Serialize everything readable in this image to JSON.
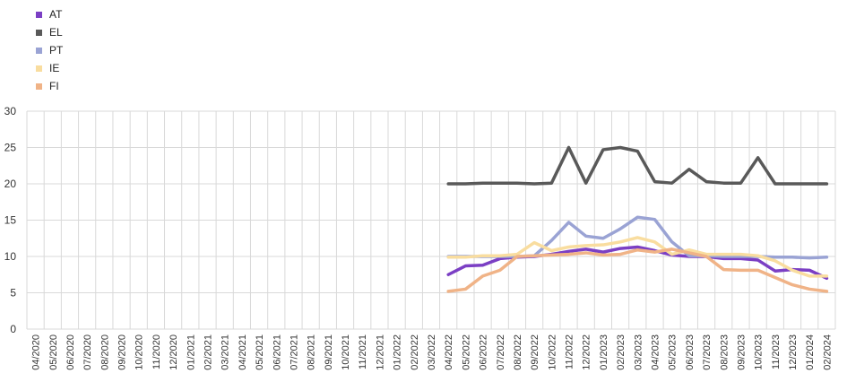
{
  "chart_data": {
    "type": "line",
    "title": "",
    "xlabel": "",
    "ylabel": "",
    "ylim": [
      0,
      30
    ],
    "yticks": [
      0,
      5,
      10,
      15,
      20,
      25,
      30
    ],
    "grid": true,
    "legend_position": "top-left",
    "x": [
      "04/2020",
      "05/2020",
      "06/2020",
      "07/2020",
      "08/2020",
      "09/2020",
      "10/2020",
      "11/2020",
      "12/2020",
      "01/2021",
      "02/2021",
      "03/2021",
      "04/2021",
      "05/2021",
      "06/2021",
      "07/2021",
      "08/2021",
      "09/2021",
      "10/2021",
      "11/2021",
      "12/2021",
      "01/2022",
      "02/2022",
      "03/2022",
      "04/2022",
      "05/2022",
      "06/2022",
      "07/2022",
      "08/2022",
      "09/2022",
      "10/2022",
      "11/2022",
      "12/2022",
      "01/2023",
      "02/2023",
      "03/2023",
      "04/2023",
      "05/2023",
      "06/2023",
      "07/2023",
      "08/2023",
      "09/2023",
      "10/2023",
      "11/2023",
      "12/2023",
      "01/2024",
      "02/2024"
    ],
    "series": [
      {
        "name": "AT",
        "color": "#7b3fc4",
        "values": [
          null,
          null,
          null,
          null,
          null,
          null,
          null,
          null,
          null,
          null,
          null,
          null,
          null,
          null,
          null,
          null,
          null,
          null,
          null,
          null,
          null,
          null,
          null,
          null,
          7.5,
          8.7,
          8.8,
          9.7,
          9.9,
          10.0,
          10.3,
          10.7,
          11.0,
          10.6,
          11.1,
          11.3,
          10.8,
          10.2,
          10.0,
          10.0,
          9.7,
          9.7,
          9.5,
          8.0,
          8.2,
          8.1,
          7.0
        ]
      },
      {
        "name": "EL",
        "color": "#595959",
        "values": [
          null,
          null,
          null,
          null,
          null,
          null,
          null,
          null,
          null,
          null,
          null,
          null,
          null,
          null,
          null,
          null,
          null,
          null,
          null,
          null,
          null,
          null,
          null,
          null,
          20.0,
          20.0,
          20.1,
          20.1,
          20.1,
          20.0,
          20.1,
          25.0,
          20.1,
          24.7,
          25.0,
          24.5,
          20.3,
          20.1,
          22.0,
          20.3,
          20.1,
          20.1,
          23.6,
          20.0,
          20.0,
          20.0,
          20.0
        ]
      },
      {
        "name": "PT",
        "color": "#9aa3d4",
        "values": [
          null,
          null,
          null,
          null,
          null,
          null,
          null,
          null,
          null,
          null,
          null,
          null,
          null,
          null,
          null,
          null,
          null,
          null,
          null,
          null,
          null,
          null,
          null,
          null,
          10.0,
          10.0,
          10.0,
          10.0,
          10.0,
          10.1,
          12.2,
          14.7,
          12.8,
          12.5,
          13.8,
          15.4,
          15.1,
          12.0,
          10.1,
          10.1,
          10.0,
          10.0,
          10.0,
          9.9,
          9.9,
          9.8,
          9.9
        ]
      },
      {
        "name": "IE",
        "color": "#f9dd9f",
        "values": [
          null,
          null,
          null,
          null,
          null,
          null,
          null,
          null,
          null,
          null,
          null,
          null,
          null,
          null,
          null,
          null,
          null,
          null,
          null,
          null,
          null,
          null,
          null,
          null,
          9.9,
          9.9,
          10.1,
          10.1,
          10.3,
          11.9,
          10.8,
          11.3,
          11.5,
          11.6,
          12.0,
          12.6,
          12.0,
          10.3,
          10.9,
          10.3,
          10.3,
          10.3,
          10.1,
          9.4,
          8.1,
          7.3,
          7.3
        ]
      },
      {
        "name": "FI",
        "color": "#f0b387",
        "values": [
          null,
          null,
          null,
          null,
          null,
          null,
          null,
          null,
          null,
          null,
          null,
          null,
          null,
          null,
          null,
          null,
          null,
          null,
          null,
          null,
          null,
          null,
          null,
          null,
          5.2,
          5.5,
          7.3,
          8.1,
          10.0,
          10.1,
          10.2,
          10.3,
          10.5,
          10.2,
          10.3,
          10.9,
          10.6,
          11.0,
          10.5,
          10.0,
          8.2,
          8.1,
          8.1,
          7.1,
          6.1,
          5.5,
          5.2
        ]
      }
    ]
  }
}
